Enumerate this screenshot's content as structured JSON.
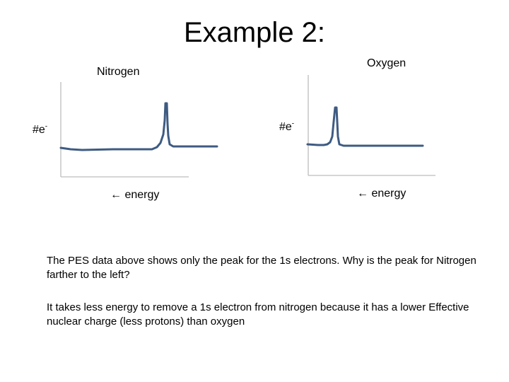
{
  "slide": {
    "title": "Example 2:"
  },
  "plots": {
    "nitrogen": {
      "label": "Nitrogen",
      "y_label": "#e",
      "y_label_sup": "-",
      "x_label": "← energy"
    },
    "oxygen": {
      "label": "Oxygen",
      "y_label": "#e",
      "y_label_sup": "-",
      "x_label": "← energy"
    }
  },
  "text": {
    "question": "The PES data above shows only the peak for the 1s electrons.  Why is the peak for Nitrogen farther to the left?",
    "answer": "It takes less energy to remove a 1s electron from nitrogen because it has a lower Effective nuclear charge (less protons) than oxygen"
  },
  "colors": {
    "curve": "#3e5b82",
    "axis": "#bdbdbd"
  }
}
